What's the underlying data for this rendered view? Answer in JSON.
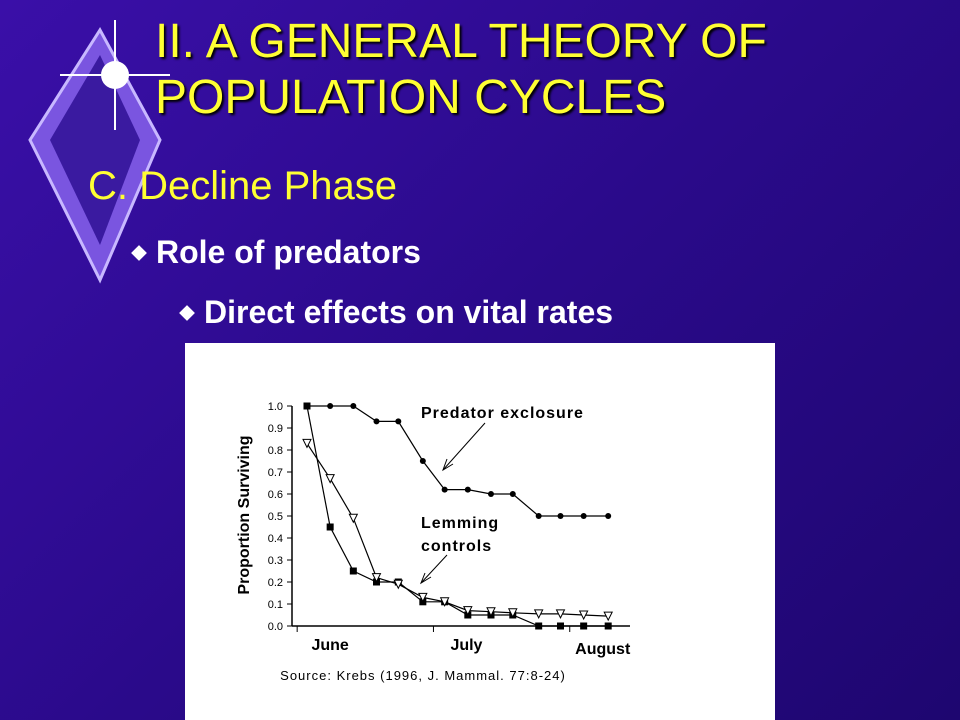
{
  "slide": {
    "title": "II.  A GENERAL THEORY OF POPULATION CYCLES",
    "subheading": "C.  Decline Phase",
    "bullets": [
      "Role of predators",
      "Direct effects on vital rates"
    ]
  },
  "chart_data": {
    "type": "line",
    "ylabel": "Proportion Surviving",
    "annotations": [
      "Predator exclosure",
      "Lemming",
      "controls"
    ],
    "source": "Source:  Krebs (1996, J. Mammal. 77:8-24)",
    "x": [
      0.83,
      1.0,
      1.17,
      1.34,
      1.5,
      1.68,
      1.84,
      2.01,
      2.18,
      2.34,
      2.53,
      2.69,
      2.86,
      3.04
    ],
    "series": [
      {
        "color": "#000000",
        "marker": "circle",
        "values": [
          1.0,
          1.0,
          1.0,
          0.93,
          0.93,
          0.75,
          0.62,
          0.62,
          0.6,
          0.6,
          0.5,
          0.5,
          0.5,
          0.5
        ]
      },
      {
        "color": "#000000",
        "marker": "square",
        "values": [
          1.0,
          0.45,
          0.25,
          0.2,
          0.2,
          0.11,
          0.11,
          0.05,
          0.05,
          0.05,
          0.0,
          0.0,
          0.0,
          0.0
        ]
      },
      {
        "color": "#000000",
        "marker": "triangle",
        "values": [
          0.83,
          0.67,
          0.49,
          0.22,
          0.19,
          0.13,
          0.11,
          0.07,
          0.065,
          0.06,
          0.055,
          0.055,
          0.05,
          0.045
        ]
      }
    ],
    "xlim": [
      0.72,
      3.2
    ],
    "xticks": [
      {
        "value": 1,
        "label": "June"
      },
      {
        "value": 2,
        "label": "July"
      },
      {
        "value": 3,
        "label": "August"
      }
    ],
    "ylim": [
      0,
      1
    ],
    "yticks": [
      {
        "value": 0,
        "label": "0.0"
      },
      0.1,
      0.2,
      0.3,
      0.4,
      0.5,
      0.6,
      0.7,
      0.8,
      0.9,
      {
        "value": 1,
        "label": "1.0"
      }
    ]
  }
}
